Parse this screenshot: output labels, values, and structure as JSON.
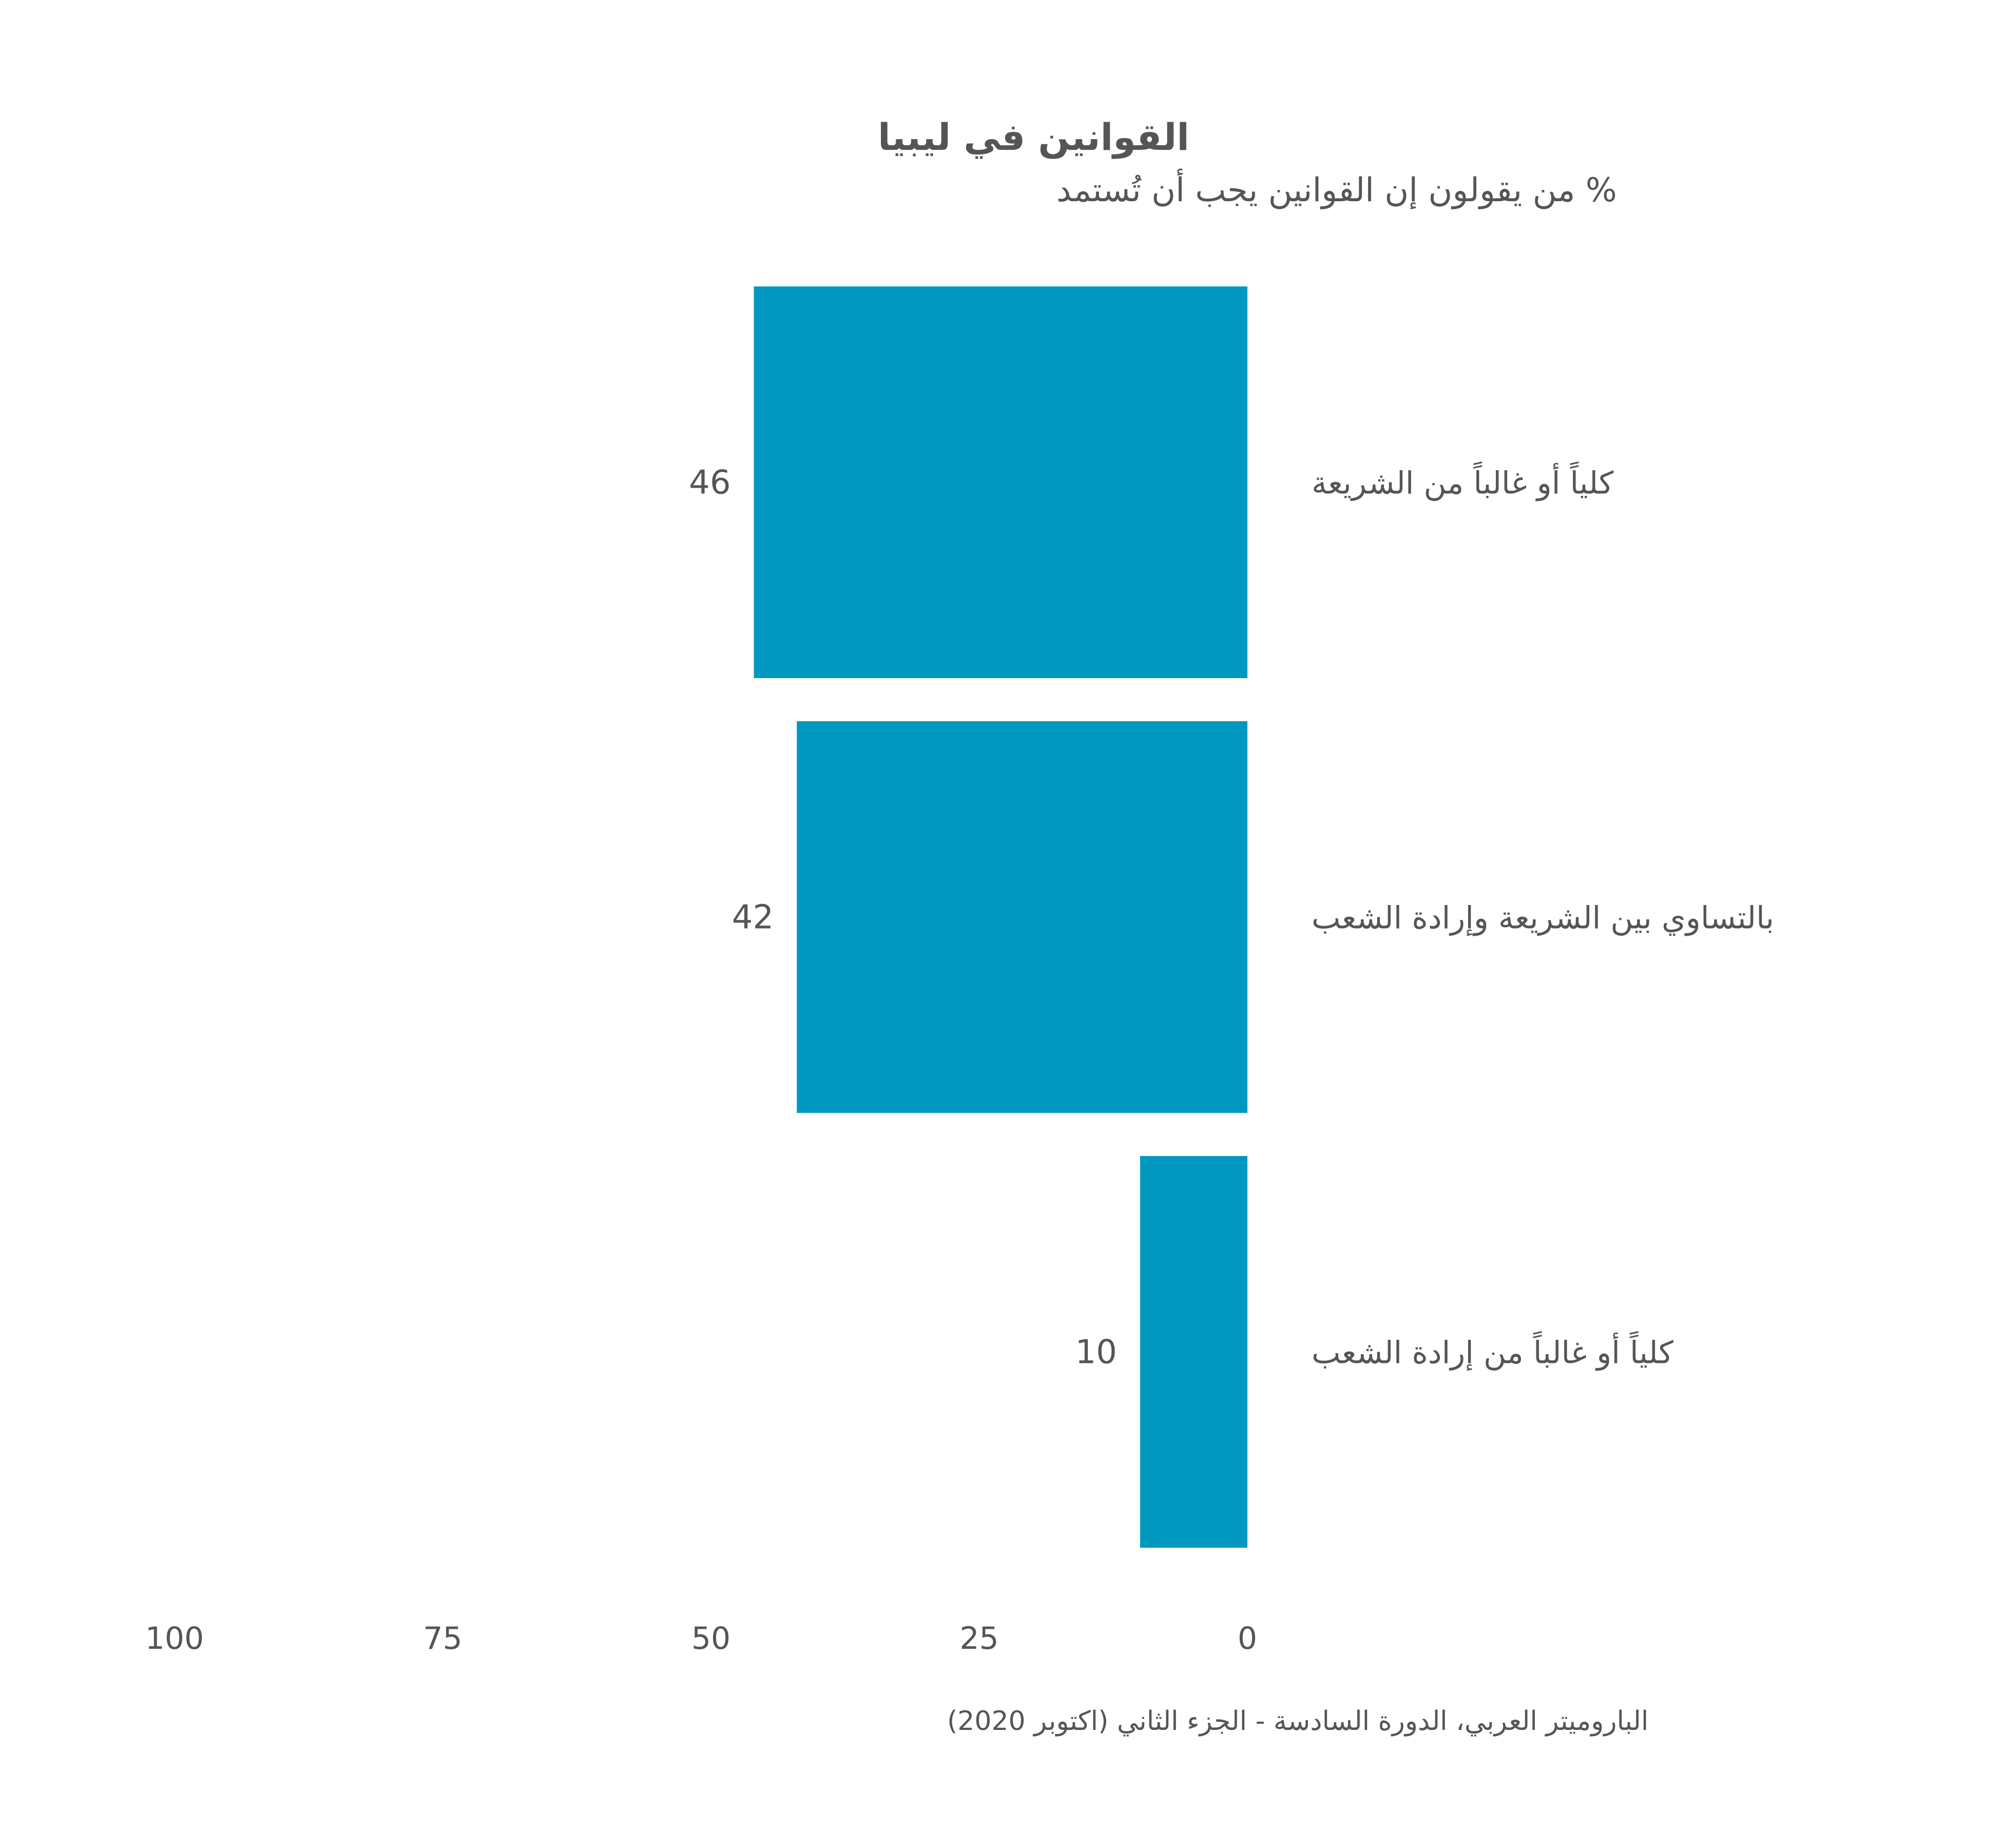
{
  "chart_data": {
    "type": "bar",
    "orientation": "horizontal",
    "direction": "rtl",
    "title": "القوانين في ليبيا",
    "subtitle": "% من يقولون إن القوانين يجب أن تُستمد",
    "categories": [
      "كلياً أو غالباً من الشريعة",
      "بالتساوي بين الشريعة وإرادة الشعب",
      "كلياً أو غالباً من إرادة الشعب"
    ],
    "values": [
      46,
      42,
      10
    ],
    "value_labels": [
      "46",
      "42",
      "10"
    ],
    "xlim": [
      0,
      100
    ],
    "x_ticks": [
      "0",
      "25",
      "50",
      "75",
      "100"
    ],
    "grid": false,
    "legend": "none",
    "source": "الباروميتر العربي، الدورة السادسة - الجزء الثاني (اكتوبر 2020)",
    "colors": {
      "bar": "#0098be",
      "text": "#555555",
      "title": "#505050",
      "background": "#ffffff"
    }
  }
}
